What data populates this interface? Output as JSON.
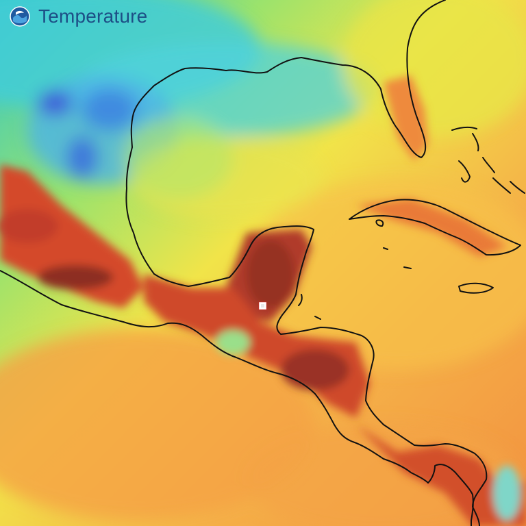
{
  "title": "Temperature",
  "logo": {
    "icon": "noaa-logo",
    "primary_color": "#1f5aa0",
    "accent_color": "#ffffff"
  },
  "legend_colors": {
    "cold": "#3b62d6",
    "cool": "#30c6e6",
    "mild": "#9ce36d",
    "warm": "#f2e84a",
    "hot": "#f09a3c",
    "very_hot": "#d94a2a",
    "extreme": "#963024"
  },
  "marker": {
    "icon": "location-marker-icon",
    "color": "#ffffff"
  }
}
